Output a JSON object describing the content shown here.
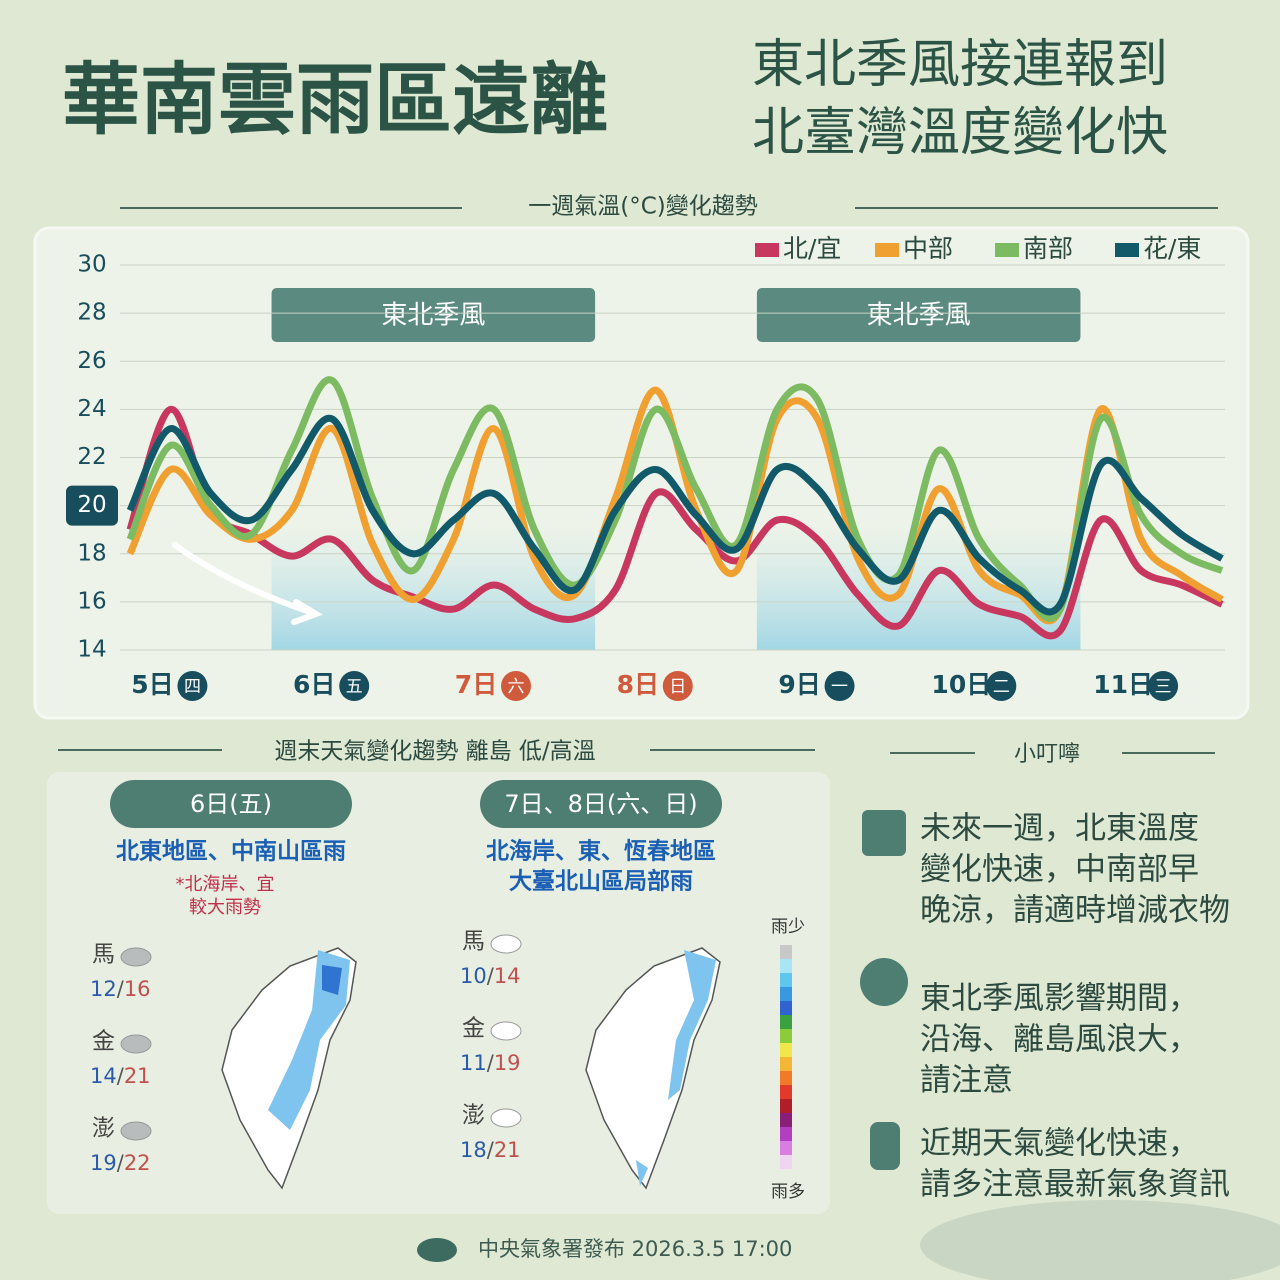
{
  "header": {
    "title": "華南雲雨區遠離",
    "subtitle": [
      "東北季風接連報到",
      "北臺灣溫度變化快"
    ]
  },
  "chart_data": {
    "type": "line",
    "title": "一週氣溫(°C)變化趨勢",
    "categories": [
      null,
      "5日",
      null,
      null,
      null,
      "6日",
      null,
      null,
      null,
      "7日",
      null,
      null,
      null,
      "8日",
      null,
      null,
      null,
      "9日",
      null,
      null,
      null,
      "10日",
      null,
      null,
      null,
      "11日",
      null,
      null
    ],
    "weekdays": [
      null,
      "四",
      null,
      null,
      null,
      "五",
      null,
      null,
      null,
      "六",
      null,
      null,
      null,
      "日",
      null,
      null,
      null,
      "一",
      null,
      null,
      null,
      "二",
      null,
      null,
      null,
      "三",
      null,
      null
    ],
    "label_colors": [
      null,
      "#174d5c",
      null,
      null,
      null,
      "#174d5c",
      null,
      null,
      null,
      "#d05a3c",
      null,
      null,
      null,
      "#d05a3c",
      null,
      null,
      null,
      "#174d5c",
      null,
      null,
      null,
      "#174d5c",
      null,
      null,
      null,
      "#174d5c",
      null,
      null
    ],
    "series": [
      {
        "name": "北/宜",
        "color": "#c8375e",
        "values": [
          19,
          24,
          19.8,
          18.8,
          17.9,
          18.6,
          16.9,
          16.2,
          15.7,
          16.7,
          15.7,
          15.3,
          16.5,
          20.5,
          19,
          17.7,
          19.4,
          18.6,
          16.3,
          15,
          17.3,
          15.9,
          15.4,
          14.8,
          19.4,
          17.3,
          16.7,
          15.9
        ]
      },
      {
        "name": "中部",
        "color": "#f0a030",
        "values": [
          18,
          21.5,
          19.6,
          18.6,
          19.8,
          23.2,
          18.4,
          16.1,
          18.6,
          23.2,
          17.8,
          16.3,
          20.3,
          24.8,
          19.8,
          17.3,
          23.6,
          23.6,
          17.8,
          16.3,
          20.7,
          17.3,
          16.3,
          15.7,
          24,
          18.6,
          17.1,
          16.1
        ]
      },
      {
        "name": "南部",
        "color": "#7dbb62",
        "values": [
          18.6,
          22.5,
          20,
          18.8,
          22.3,
          25.2,
          20.3,
          17.3,
          21.5,
          24,
          19,
          16.7,
          19.4,
          24,
          20.7,
          18.4,
          24,
          24.4,
          18.6,
          17.1,
          22.3,
          18.6,
          16.7,
          15.7,
          23.6,
          19.6,
          18,
          17.3
        ]
      },
      {
        "name": "花/東",
        "color": "#125a6a",
        "values": [
          19.8,
          23.2,
          20.5,
          19.4,
          21.5,
          23.6,
          19.8,
          18,
          19.4,
          20.5,
          18.2,
          16.5,
          19.8,
          21.5,
          19.6,
          18.2,
          21.5,
          20.7,
          18.2,
          16.9,
          19.8,
          17.8,
          16.5,
          15.9,
          21.7,
          20.3,
          18.8,
          17.8
        ]
      }
    ],
    "ylim": [
      14,
      30
    ],
    "yticks": [
      14,
      16,
      18,
      20,
      22,
      24,
      26,
      28,
      30
    ],
    "highlight_ytick": 20,
    "grid": true,
    "legend": "top-right",
    "spans": [
      {
        "label": "東北季風",
        "from": 3.5,
        "to": 11.5
      },
      {
        "label": "東北季風",
        "from": 15.5,
        "to": 23.5
      }
    ]
  },
  "weekend": {
    "title": "週末天氣變化趨勢 離島 低/高溫",
    "separator": "/",
    "panels": [
      {
        "date": "6日(五)",
        "regions": [
          "北東地區、中南山區雨"
        ],
        "note": [
          "*北海岸、宜",
          "較大雨勢"
        ],
        "islands": [
          {
            "name": "馬",
            "low": 12,
            "high": 16
          },
          {
            "name": "金",
            "low": 14,
            "high": 21
          },
          {
            "name": "澎",
            "low": 19,
            "high": 22
          }
        ]
      },
      {
        "date": "7日、8日(六、日)",
        "regions": [
          "北海岸、東、恆春地區",
          "大臺北山區局部雨"
        ],
        "note": [],
        "islands": [
          {
            "name": "馬",
            "low": 10,
            "high": 14
          },
          {
            "name": "金",
            "low": 11,
            "high": 19
          },
          {
            "name": "澎",
            "low": 18,
            "high": 21
          }
        ]
      }
    ],
    "scale": {
      "low": "雨少",
      "high": "雨多"
    }
  },
  "tips": {
    "title": "小叮嚀",
    "items": [
      {
        "lines": [
          "未來一週，北東溫度",
          "變化快速，中南部早",
          "晚涼，請適時增減衣物"
        ]
      },
      {
        "lines": [
          "東北季風影響期間，",
          "沿海、離島風浪大，",
          "請注意"
        ]
      },
      {
        "lines": [
          "近期天氣變化快速，",
          "請多注意最新氣象資訊"
        ]
      }
    ]
  },
  "footer": "中央氣象署發布 2026.3.5 17:00"
}
